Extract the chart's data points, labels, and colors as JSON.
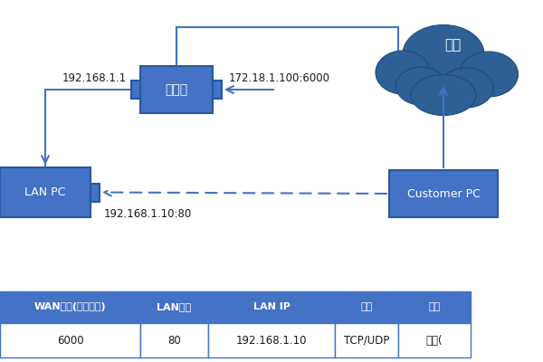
{
  "bg_color": "#ffffff",
  "box_color": "#4472c4",
  "box_edge_color": "#2758a0",
  "text_color_white": "#ffffff",
  "text_color_dark": "#1a1a1a",
  "arrow_color": "#4472c4",
  "cloud_color": "#2e6096",
  "cloud_edge": "#1e4a7a",
  "router_label": "路由器",
  "lan_pc_label": "LAN PC",
  "customer_pc_label": "Customer PC",
  "cloud_label": "公网",
  "ip_router_lan": "192.168.1.1",
  "ip_router_wan": "172.18.1.100:6000",
  "ip_lan_pc": "192.168.1.10:80",
  "table_headers": [
    "WAN端口(服务端口)",
    "LAN端口",
    "LAN IP",
    "协议",
    "状态"
  ],
  "table_row": [
    "6000",
    "80",
    "192.168.1.10",
    "TCP/UDP",
    "开启("
  ],
  "table_header_bg": "#4472c4",
  "table_row_bg": "#ffffff",
  "table_border_color": "#4472c4"
}
